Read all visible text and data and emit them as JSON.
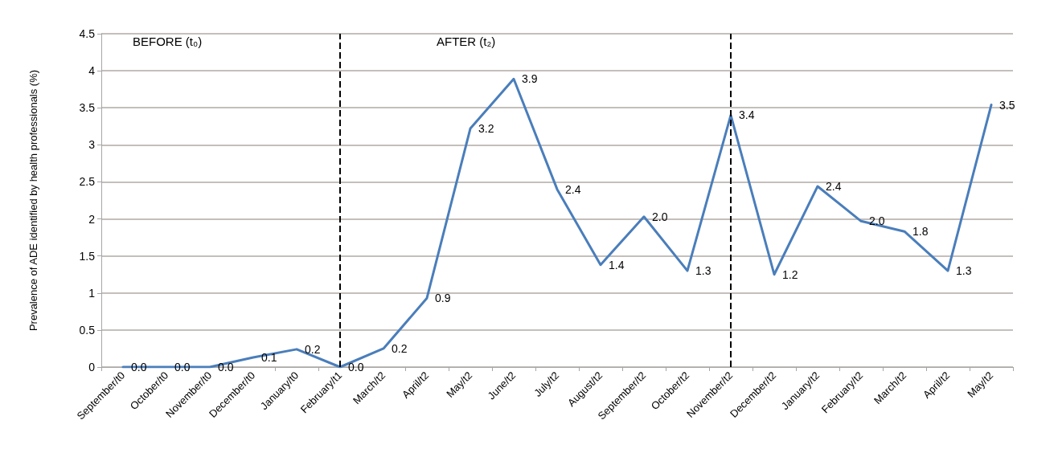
{
  "chart_data": {
    "type": "line",
    "ylabel": "Prevalence of ADE identified by health professionals (%)",
    "categories": [
      "September/t0",
      "October/t0",
      "November/t0",
      "December/t0",
      "January/t0",
      "February/t1",
      "March/t2",
      "April/t2",
      "May/t2",
      "June/t2",
      "July/t2",
      "August/t2",
      "September/t2",
      "October/t2",
      "November/t2",
      "December/t2",
      "January/t2",
      "February/t2",
      "March/t2",
      "April/t2",
      "May/t2"
    ],
    "series": [
      {
        "color": "#4a7ebb",
        "values": [
          0,
          0,
          0,
          0.13,
          0.24,
          0,
          0.25,
          0.93,
          3.22,
          3.89,
          2.4,
          1.38,
          2.03,
          1.3,
          3.4,
          1.25,
          2.44,
          1.97,
          1.83,
          1.3,
          3.54
        ],
        "value_labels": [
          "0.0",
          "0.0",
          "0.0",
          "0.1",
          "0.2",
          "0.0",
          "0.2",
          "0.9",
          "3.2",
          "3.9",
          "2.4",
          "1.4",
          "2.0",
          "1.3",
          "3.4",
          "1.2",
          "2.4",
          "2.0",
          "1.8",
          "1.3",
          "3.5"
        ]
      }
    ],
    "ylim": [
      0,
      4.5
    ],
    "yticks": [
      0,
      0.5,
      1,
      1.5,
      2,
      2.5,
      3,
      3.5,
      4,
      4.5
    ],
    "grid": "y",
    "marker": "none",
    "line_style": "solid",
    "ref_lines": [
      {
        "axis": "x",
        "value": "February/t1",
        "color": "#000000",
        "line_style": "dashed"
      },
      {
        "axis": "x",
        "value": "November/t2",
        "color": "#000000",
        "line_style": "dashed"
      }
    ],
    "annotations": [
      "BEFORE (t₀)",
      "AFTER (t₂)"
    ]
  }
}
